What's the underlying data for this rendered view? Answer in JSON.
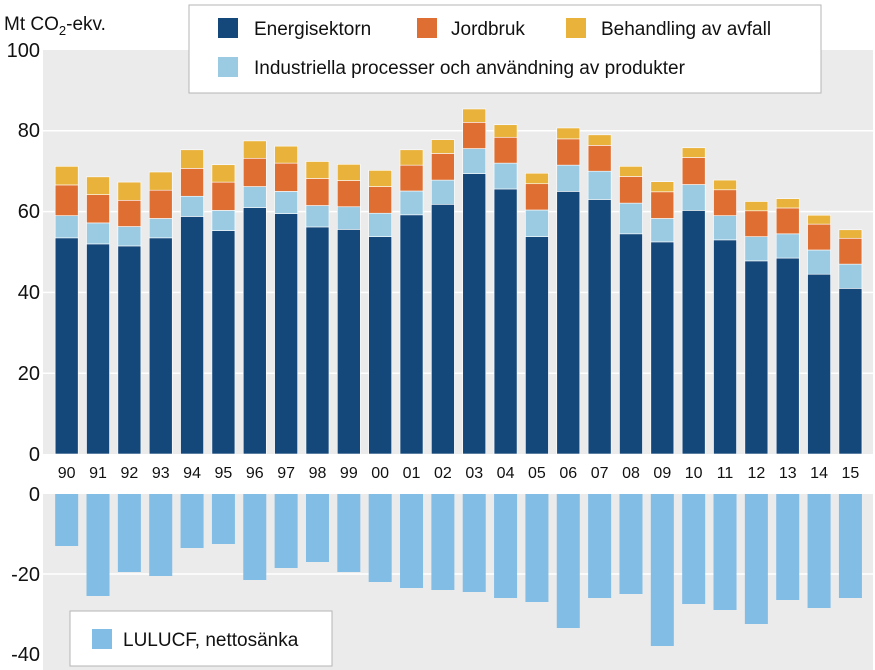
{
  "chart_data": {
    "type": "bar",
    "stacked": true,
    "unit_label_prefix": "Mt CO",
    "unit_label_sub": "2",
    "unit_label_suffix": "-ekv.",
    "categories": [
      "90",
      "91",
      "92",
      "93",
      "94",
      "95",
      "96",
      "97",
      "98",
      "99",
      "00",
      "01",
      "02",
      "03",
      "04",
      "05",
      "06",
      "07",
      "08",
      "09",
      "10",
      "11",
      "12",
      "13",
      "14",
      "15"
    ],
    "series": [
      {
        "name": "Energisektorn",
        "color": "#14477a",
        "values": [
          53.5,
          52,
          51.5,
          53.5,
          58.8,
          55.3,
          61,
          59.5,
          56.2,
          55.6,
          53.8,
          59.2,
          61.8,
          69.4,
          65.6,
          53.8,
          65,
          63,
          54.5,
          52.5,
          60.3,
          53,
          47.8,
          48.5,
          44.5,
          41
        ]
      },
      {
        "name": "Industriella processer och användning av produkter",
        "color": "#9bcbe3",
        "values": [
          5.5,
          5.2,
          4.8,
          4.8,
          5,
          5,
          5.2,
          5.5,
          5.3,
          5.6,
          5.8,
          5.9,
          6,
          6.2,
          6.4,
          6.6,
          6.5,
          7,
          7.6,
          5.8,
          6.4,
          6,
          6,
          6,
          6,
          6
        ]
      },
      {
        "name": "Jordbruk",
        "color": "#de6e31",
        "values": [
          7.6,
          7,
          6.5,
          7,
          6.9,
          7,
          7,
          7,
          6.7,
          6.5,
          6.6,
          6.4,
          6.6,
          6.5,
          6.4,
          6.5,
          6.5,
          6.4,
          6.6,
          6.6,
          6.7,
          6.4,
          6.4,
          6.4,
          6.4,
          6.4
        ]
      },
      {
        "name": "Behandling av avfall",
        "color": "#e8b23b",
        "values": [
          4.6,
          4.4,
          4.5,
          4.5,
          4.6,
          4.3,
          4.3,
          4.2,
          4.2,
          4,
          4,
          3.8,
          3.4,
          3.3,
          3.1,
          2.6,
          2.7,
          2.6,
          2.5,
          2.5,
          2.4,
          2.4,
          2.3,
          2.3,
          2.2,
          2.1
        ]
      }
    ],
    "sink": {
      "name": "LULUCF, nettosänka",
      "color": "#82bde6",
      "values": [
        -13,
        -25.5,
        -19.5,
        -20.5,
        -13.5,
        -12.5,
        -21.5,
        -18.5,
        -17,
        -19.5,
        -22,
        -23.5,
        -24,
        -24.5,
        -26,
        -27,
        -33.5,
        -26,
        -25,
        -38,
        -27.5,
        -29,
        -32.5,
        -26.5,
        -28.5,
        -26
      ]
    },
    "upper_axis": {
      "ylim": [
        0,
        100
      ],
      "ticks": [
        "0",
        "20",
        "40",
        "60",
        "80",
        "100"
      ],
      "grid": true
    },
    "lower_axis": {
      "ylim": [
        -40,
        0
      ],
      "ticks": [
        "0",
        "-20",
        "-40"
      ],
      "grid": true
    },
    "legend_upper_placement": "top",
    "legend_lower_placement": "bottom-left"
  }
}
